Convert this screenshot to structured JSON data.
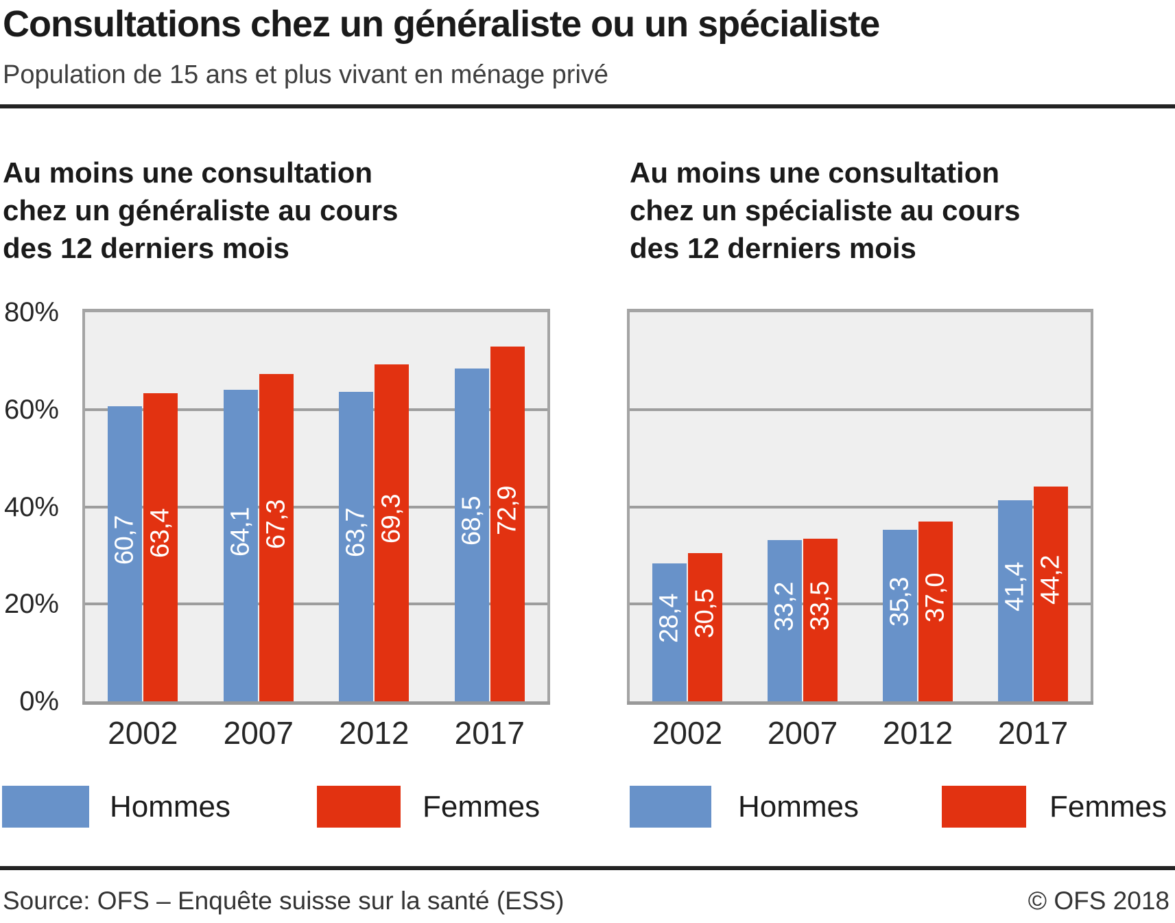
{
  "title": "Consultations chez un généraliste ou un spécialiste",
  "subtitle": "Population de 15 ans et plus vivant en ménage privé",
  "footer": {
    "source": "Source: OFS – Enquête suisse sur la santé (ESS)",
    "copyright": "© OFS 2018"
  },
  "colors": {
    "hommes_blue": "#6892c9",
    "femmes_red": "#e23211",
    "plot_background": "#efefef",
    "gridline_gray": "#9d9d9d",
    "rule_black": "#232323"
  },
  "legend": [
    "Hommes",
    "Femmes"
  ],
  "chart_data": [
    {
      "type": "bar",
      "title": "Au moins une consultation\nchez un généraliste au cours\ndes 12 derniers mois",
      "categories": [
        "2002",
        "2007",
        "2012",
        "2017"
      ],
      "series": [
        {
          "name": "Hommes",
          "color": "#6892c9",
          "values": [
            60.7,
            64.1,
            63.7,
            68.5
          ],
          "labels": [
            "60,7",
            "64,1",
            "63,7",
            "68,5"
          ]
        },
        {
          "name": "Femmes",
          "color": "#e23211",
          "values": [
            63.4,
            67.3,
            69.3,
            72.9
          ],
          "labels": [
            "63,4",
            "67,3",
            "69,3",
            "72,9"
          ]
        }
      ],
      "xlabel": "",
      "ylabel": "",
      "ylim": [
        0,
        80
      ],
      "yticks": [
        0,
        20,
        40,
        60,
        80
      ],
      "ytick_labels": [
        "0%",
        "20%",
        "40%",
        "60%",
        "80%"
      ],
      "grid": true,
      "legend_position": "bottom"
    },
    {
      "type": "bar",
      "title": "Au moins une consultation\nchez un spécialiste au cours\ndes 12 derniers mois",
      "categories": [
        "2002",
        "2007",
        "2012",
        "2017"
      ],
      "series": [
        {
          "name": "Hommes",
          "color": "#6892c9",
          "values": [
            28.4,
            33.2,
            35.3,
            41.4
          ],
          "labels": [
            "28,4",
            "33,2",
            "35,3",
            "41,4"
          ]
        },
        {
          "name": "Femmes",
          "color": "#e23211",
          "values": [
            30.5,
            33.5,
            37.0,
            44.2
          ],
          "labels": [
            "30,5",
            "33,5",
            "37,0",
            "44,2"
          ]
        }
      ],
      "xlabel": "",
      "ylabel": "",
      "ylim": [
        0,
        80
      ],
      "yticks": [
        0,
        20,
        40,
        60,
        80
      ],
      "ytick_labels": [
        "0%",
        "20%",
        "40%",
        "60%",
        "80%"
      ],
      "grid": true,
      "legend_position": "bottom"
    }
  ]
}
